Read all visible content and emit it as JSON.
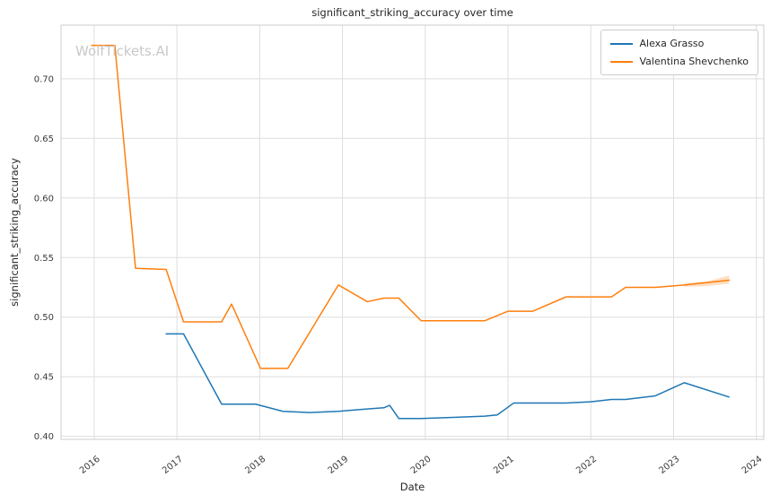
{
  "title": "significant_striking_accuracy over time",
  "watermark": "WolfTickets.AI",
  "legend": [
    {
      "label": "Alexa Grasso",
      "color": "#1f77b4"
    },
    {
      "label": "Valentina Shevchenko",
      "color": "#ff7f0e"
    }
  ],
  "chart_data": {
    "type": "line",
    "title": "significant_striking_accuracy over time",
    "xlabel": "Date",
    "ylabel": "significant_striking_accuracy",
    "xlim": [
      2015.6,
      2024.09
    ],
    "ylim": [
      0.3975,
      0.745
    ],
    "xticks": [
      2016,
      2017,
      2018,
      2019,
      2020,
      2021,
      2022,
      2023,
      2024
    ],
    "yticks": [
      0.4,
      0.45,
      0.5,
      0.55,
      0.6,
      0.65,
      0.7
    ],
    "grid": true,
    "legend_position": "upper right",
    "series": [
      {
        "name": "Alexa Grasso",
        "color": "#1f77b4",
        "points": [
          [
            2016.87,
            0.486
          ],
          [
            2017.08,
            0.486
          ],
          [
            2017.54,
            0.427
          ],
          [
            2017.95,
            0.427
          ],
          [
            2018.28,
            0.421
          ],
          [
            2018.6,
            0.42
          ],
          [
            2018.95,
            0.421
          ],
          [
            2019.3,
            0.423
          ],
          [
            2019.5,
            0.424
          ],
          [
            2019.57,
            0.426
          ],
          [
            2019.68,
            0.415
          ],
          [
            2019.95,
            0.415
          ],
          [
            2020.38,
            0.416
          ],
          [
            2020.72,
            0.417
          ],
          [
            2020.87,
            0.418
          ],
          [
            2021.07,
            0.428
          ],
          [
            2021.3,
            0.428
          ],
          [
            2021.7,
            0.428
          ],
          [
            2022.0,
            0.429
          ],
          [
            2022.25,
            0.431
          ],
          [
            2022.42,
            0.431
          ],
          [
            2022.78,
            0.434
          ],
          [
            2023.13,
            0.445
          ],
          [
            2023.67,
            0.433
          ]
        ]
      },
      {
        "name": "Valentina Shevchenko",
        "color": "#ff7f0e",
        "points": [
          [
            2015.97,
            0.728
          ],
          [
            2016.25,
            0.728
          ],
          [
            2016.5,
            0.541
          ],
          [
            2016.87,
            0.54
          ],
          [
            2017.08,
            0.496
          ],
          [
            2017.54,
            0.496
          ],
          [
            2017.66,
            0.511
          ],
          [
            2018.01,
            0.457
          ],
          [
            2018.34,
            0.457
          ],
          [
            2018.95,
            0.527
          ],
          [
            2019.3,
            0.513
          ],
          [
            2019.5,
            0.516
          ],
          [
            2019.68,
            0.516
          ],
          [
            2019.95,
            0.497
          ],
          [
            2020.38,
            0.497
          ],
          [
            2020.72,
            0.497
          ],
          [
            2021.0,
            0.505
          ],
          [
            2021.3,
            0.505
          ],
          [
            2021.7,
            0.517
          ],
          [
            2022.0,
            0.517
          ],
          [
            2022.25,
            0.517
          ],
          [
            2022.42,
            0.525
          ],
          [
            2022.78,
            0.525
          ],
          [
            2023.13,
            0.527
          ],
          [
            2023.67,
            0.531
          ]
        ],
        "band": {
          "x": [
            2023.13,
            2023.4,
            2023.67
          ],
          "low": [
            0.5255,
            0.526,
            0.528
          ],
          "high": [
            0.5285,
            0.53,
            0.535
          ]
        }
      }
    ]
  },
  "style": {
    "grid_color": "#dedede",
    "spine_color": "#cccccc",
    "tick_color": "#3a3a3a"
  }
}
